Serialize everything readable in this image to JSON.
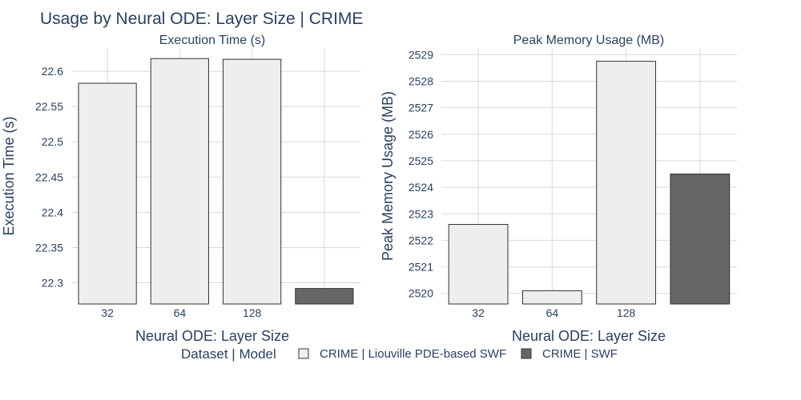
{
  "figure": {
    "title": "Usage by Neural ODE: Layer Size | CRIME",
    "legend_title": "Dataset | Model",
    "legend_items": [
      {
        "name": "CRIME | Liouville PDE-based SWF",
        "color": "#eeeeee"
      },
      {
        "name": "CRIME | SWF",
        "color": "#666666"
      }
    ],
    "colors": {
      "text": "#2a3f5f",
      "grid": "#d9d9d9",
      "bar_outline": "#333333"
    }
  },
  "chart_data": [
    {
      "type": "bar",
      "title": "Execution Time (s)",
      "xlabel": "Neural ODE: Layer Size",
      "ylabel": "Execution Time (s)",
      "categories": [
        "32",
        "64",
        "128",
        ""
      ],
      "ylim": [
        22.27,
        22.633
      ],
      "yticks": [
        22.3,
        22.35,
        22.4,
        22.45,
        22.5,
        22.55,
        22.6
      ],
      "ytick_labels": [
        "22.3",
        "22.35",
        "22.4",
        "22.45",
        "22.5",
        "22.55",
        "22.6"
      ],
      "series": [
        {
          "name": "CRIME | Liouville PDE-based SWF",
          "values": [
            22.583,
            22.618,
            22.617,
            null
          ],
          "color": "#eeeeee"
        },
        {
          "name": "CRIME | SWF",
          "values": [
            null,
            null,
            null,
            22.292
          ],
          "color": "#666666"
        }
      ]
    },
    {
      "type": "bar",
      "title": "Peak Memory Usage (MB)",
      "xlabel": "Neural ODE: Layer Size",
      "ylabel": "Peak Memory Usage (MB)",
      "categories": [
        "32",
        "64",
        "128",
        ""
      ],
      "ylim": [
        2519.6,
        2529.25
      ],
      "yticks": [
        2520,
        2521,
        2522,
        2523,
        2524,
        2525,
        2526,
        2527,
        2528,
        2529
      ],
      "ytick_labels": [
        "2520",
        "2521",
        "2522",
        "2523",
        "2524",
        "2525",
        "2526",
        "2527",
        "2528",
        "2529"
      ],
      "series": [
        {
          "name": "CRIME | Liouville PDE-based SWF",
          "values": [
            2522.6,
            2520.1,
            2528.75,
            null
          ],
          "color": "#eeeeee"
        },
        {
          "name": "CRIME | SWF",
          "values": [
            null,
            null,
            null,
            2524.5
          ],
          "color": "#666666"
        }
      ]
    }
  ]
}
